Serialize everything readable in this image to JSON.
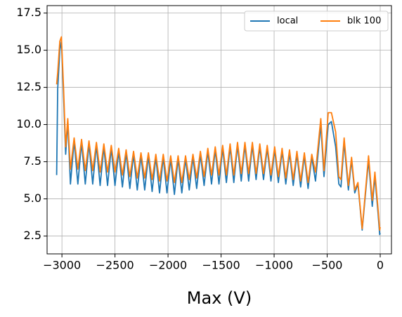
{
  "chart_data": {
    "type": "line",
    "xlabel": "Max (V)",
    "x": [
      -3050,
      -3040,
      -3020,
      -3005,
      -2985,
      -2965,
      -2945,
      -2920,
      -2885,
      -2850,
      -2815,
      -2780,
      -2745,
      -2710,
      -2675,
      -2640,
      -2605,
      -2570,
      -2535,
      -2500,
      -2465,
      -2430,
      -2395,
      -2360,
      -2325,
      -2290,
      -2255,
      -2220,
      -2185,
      -2150,
      -2115,
      -2080,
      -2045,
      -2010,
      -1975,
      -1940,
      -1905,
      -1870,
      -1835,
      -1800,
      -1765,
      -1730,
      -1695,
      -1660,
      -1625,
      -1590,
      -1555,
      -1520,
      -1485,
      -1450,
      -1415,
      -1380,
      -1345,
      -1310,
      -1275,
      -1240,
      -1205,
      -1170,
      -1135,
      -1100,
      -1065,
      -1030,
      -995,
      -960,
      -925,
      -890,
      -855,
      -820,
      -785,
      -750,
      -715,
      -680,
      -645,
      -610,
      -560,
      -530,
      -490,
      -460,
      -420,
      -390,
      -370,
      -340,
      -300,
      -270,
      -240,
      -210,
      -170,
      -110,
      -75,
      -50,
      -20,
      -5,
      0
    ],
    "series": [
      {
        "name": "local",
        "color": "#1f77b4",
        "values": [
          6.6,
          12.4,
          15.0,
          15.6,
          12.0,
          8.0,
          10.2,
          6.0,
          8.9,
          6.0,
          8.8,
          6.0,
          8.7,
          6.0,
          8.6,
          5.9,
          8.5,
          5.9,
          8.4,
          5.9,
          8.2,
          5.8,
          8.1,
          5.7,
          8.0,
          5.6,
          7.9,
          5.6,
          7.9,
          5.5,
          7.8,
          5.4,
          7.8,
          5.4,
          7.7,
          5.3,
          7.7,
          5.4,
          7.7,
          5.6,
          7.8,
          5.7,
          8.0,
          5.9,
          8.2,
          6.0,
          8.3,
          6.0,
          8.4,
          6.1,
          8.5,
          6.1,
          8.6,
          6.2,
          8.6,
          6.2,
          8.6,
          6.3,
          8.5,
          6.3,
          8.4,
          6.2,
          8.3,
          6.1,
          8.2,
          6.0,
          8.1,
          5.9,
          8.0,
          5.8,
          7.9,
          5.7,
          7.8,
          6.2,
          10.0,
          6.5,
          10.0,
          10.2,
          8.5,
          6.0,
          5.8,
          8.8,
          5.6,
          7.6,
          5.4,
          6.0,
          2.9,
          7.6,
          4.5,
          6.5,
          4.0,
          2.6,
          2.7
        ]
      },
      {
        "name": "blk 100",
        "color": "#ff7f0e",
        "values": [
          12.7,
          13.5,
          15.6,
          15.9,
          12.5,
          8.5,
          10.4,
          7.0,
          9.1,
          7.0,
          9.0,
          6.9,
          8.9,
          6.9,
          8.8,
          6.8,
          8.7,
          6.8,
          8.6,
          6.8,
          8.4,
          6.6,
          8.3,
          6.5,
          8.2,
          6.4,
          8.1,
          6.4,
          8.1,
          6.3,
          8.0,
          6.2,
          8.0,
          6.2,
          7.9,
          6.1,
          7.9,
          6.1,
          7.9,
          6.3,
          8.0,
          6.4,
          8.2,
          6.5,
          8.4,
          6.6,
          8.5,
          6.6,
          8.6,
          6.6,
          8.7,
          6.6,
          8.8,
          6.7,
          8.8,
          6.7,
          8.8,
          6.7,
          8.7,
          6.7,
          8.6,
          6.6,
          8.5,
          6.5,
          8.4,
          6.4,
          8.3,
          6.3,
          8.2,
          6.2,
          8.1,
          6.1,
          8.0,
          6.8,
          10.4,
          6.9,
          10.8,
          10.8,
          9.5,
          6.5,
          6.3,
          9.1,
          5.9,
          7.8,
          5.6,
          6.1,
          3.0,
          7.9,
          4.9,
          6.8,
          4.3,
          2.9,
          3.1
        ]
      }
    ],
    "xlim": [
      -3140,
      106
    ],
    "ylim": [
      1.3,
      18.0
    ],
    "xticks": [
      {
        "value": -3000,
        "label": "−3000"
      },
      {
        "value": -2500,
        "label": "−2500"
      },
      {
        "value": -2000,
        "label": "−2000"
      },
      {
        "value": -1500,
        "label": "−1500"
      },
      {
        "value": -1000,
        "label": "−1000"
      },
      {
        "value": -500,
        "label": "−500"
      },
      0
    ],
    "yticks": [
      2.5,
      {
        "value": 5,
        "label": "5.0"
      },
      7.5,
      {
        "value": 10,
        "label": "10.0"
      },
      12.5,
      {
        "value": 15,
        "label": "15.0"
      },
      17.5
    ],
    "grid": true,
    "legend": "upper right"
  }
}
